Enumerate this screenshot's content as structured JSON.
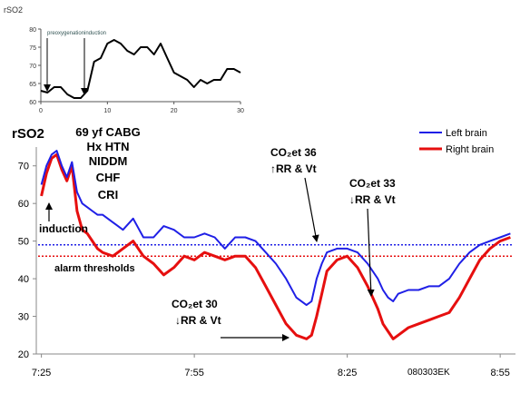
{
  "chart_data": [
    {
      "type": "line",
      "ylabel": "rSO2",
      "x_ticks": [
        0,
        10,
        20,
        30
      ],
      "y_ticks": [
        60,
        65,
        70,
        75,
        80
      ],
      "xlim": [
        0,
        30
      ],
      "ylim": [
        60,
        80
      ],
      "series": [
        {
          "x": [
            0,
            1,
            2,
            3,
            4,
            5,
            6,
            7,
            8,
            9,
            10,
            11,
            12,
            13,
            14,
            15,
            16,
            17,
            18,
            19,
            20,
            21,
            22,
            23,
            24,
            25,
            26,
            27,
            28,
            29,
            30
          ],
          "values": [
            63,
            62.5,
            64,
            64,
            62,
            61,
            61,
            63,
            71,
            72,
            76,
            77,
            76,
            74,
            73,
            75,
            75,
            73,
            76,
            72,
            68,
            67,
            66,
            64,
            66,
            65,
            66,
            66,
            69,
            69,
            68
          ]
        }
      ],
      "annotations": [
        {
          "text": "preoxygenation",
          "x": 1
        },
        {
          "text": "induction",
          "x": 6.5
        }
      ],
      "color": "#000000"
    },
    {
      "type": "line",
      "ylabel": "rSO2",
      "ylim": [
        20,
        75
      ],
      "y_ticks": [
        20,
        30,
        40,
        50,
        60,
        70
      ],
      "x_tick_labels": [
        "7:25",
        "7:55",
        "8:25",
        "8:55"
      ],
      "x_tick_minutes": [
        0,
        30,
        60,
        90
      ],
      "xlim_minutes": [
        -1,
        93
      ],
      "legend": {
        "placement": "top-right",
        "entries": [
          "Left brain",
          "Right brain"
        ]
      },
      "series": [
        {
          "name": "Left brain",
          "color": "#1f1fe6",
          "x_minutes": [
            0,
            1,
            2,
            3,
            4,
            5,
            6,
            7,
            8,
            9,
            10,
            11,
            12,
            14,
            16,
            18,
            20,
            22,
            24,
            26,
            28,
            30,
            32,
            34,
            36,
            38,
            40,
            42,
            44,
            46,
            48,
            50,
            52,
            53,
            54,
            55,
            56,
            58,
            60,
            62,
            64,
            66,
            67,
            68,
            69,
            70,
            72,
            74,
            76,
            78,
            80,
            82,
            84,
            86,
            88,
            90,
            92
          ],
          "values": [
            65,
            70,
            73,
            74,
            70,
            67,
            71,
            63,
            60,
            59,
            58,
            57,
            57,
            55,
            53,
            56,
            51,
            51,
            54,
            53,
            51,
            51,
            52,
            51,
            48,
            51,
            51,
            50,
            47,
            44,
            40,
            35,
            33,
            34,
            40,
            44,
            47,
            48,
            48,
            47,
            44,
            40,
            37,
            35,
            34,
            36,
            37,
            37,
            38,
            38,
            40,
            44,
            47,
            49,
            50,
            51,
            52
          ]
        },
        {
          "name": "Right brain",
          "color": "#e60f0f",
          "x_minutes": [
            0,
            1,
            2,
            3,
            4,
            5,
            6,
            7,
            8,
            9,
            10,
            11,
            12,
            14,
            16,
            18,
            20,
            22,
            24,
            26,
            28,
            30,
            32,
            34,
            36,
            38,
            40,
            42,
            44,
            46,
            48,
            50,
            52,
            53,
            54,
            55,
            56,
            58,
            60,
            62,
            64,
            66,
            67,
            68,
            69,
            70,
            72,
            74,
            76,
            78,
            80,
            82,
            84,
            86,
            88,
            90,
            92
          ],
          "values": [
            62,
            68,
            72,
            73,
            69,
            66,
            70,
            58,
            53,
            52,
            50,
            48,
            47,
            46,
            48,
            50,
            46,
            44,
            41,
            43,
            46,
            45,
            47,
            46,
            45,
            46,
            46,
            43,
            38,
            33,
            28,
            25,
            24,
            25,
            30,
            36,
            42,
            45,
            46,
            43,
            38,
            32,
            28,
            26,
            24,
            25,
            27,
            28,
            29,
            30,
            31,
            35,
            40,
            45,
            48,
            50,
            51
          ]
        }
      ],
      "thresholds": [
        {
          "series": "Left brain",
          "value": 49,
          "color": "#1f1fe6"
        },
        {
          "series": "Right brain",
          "value": 46,
          "color": "#e60f0f"
        }
      ],
      "threshold_label": "alarm thresholds",
      "patient_info": [
        "69 yf CABG",
        "Hx HTN",
        "NIDDM",
        "CHF",
        "CRI"
      ],
      "annotations": [
        {
          "id": "induction",
          "text": "induction"
        },
        {
          "id": "co2-30",
          "lines": [
            "CO₂et 30",
            "↓RR & Vt"
          ]
        },
        {
          "id": "co2-36",
          "lines": [
            "CO₂et 36",
            "↑RR & Vt"
          ]
        },
        {
          "id": "co2-33",
          "lines": [
            "CO₂et 33",
            "↓RR & Vt"
          ]
        }
      ],
      "case_id": "080303EK"
    }
  ]
}
